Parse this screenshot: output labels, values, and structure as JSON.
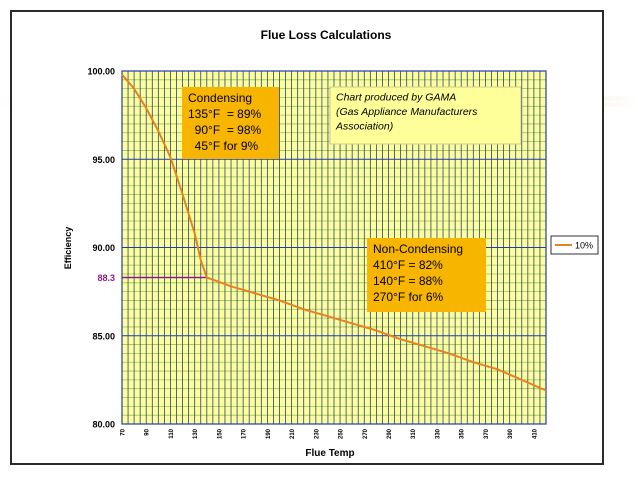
{
  "chart_data": {
    "type": "line",
    "title": "Flue Loss Calculations",
    "xlabel": "Flue Temp",
    "ylabel": "Efficiency",
    "xlim": [
      70,
      420
    ],
    "ylim": [
      80,
      100
    ],
    "x_ticks": [
      70,
      90,
      110,
      130,
      150,
      170,
      190,
      210,
      230,
      250,
      270,
      290,
      310,
      330,
      350,
      370,
      390,
      410
    ],
    "y_ticks": [
      "80.00",
      "85.00",
      "90.00",
      "95.00",
      "100.00"
    ],
    "grid": true,
    "legend_position": "right",
    "series": [
      {
        "name": "10%",
        "color": "#e8821e",
        "points": [
          [
            70,
            99.8
          ],
          [
            80,
            99.0
          ],
          [
            90,
            97.9
          ],
          [
            100,
            96.6
          ],
          [
            110,
            95.1
          ],
          [
            120,
            93.0
          ],
          [
            130,
            90.8
          ],
          [
            135,
            89.3
          ],
          [
            140,
            88.3
          ],
          [
            160,
            87.8
          ],
          [
            180,
            87.4
          ],
          [
            200,
            87.0
          ],
          [
            220,
            86.5
          ],
          [
            240,
            86.1
          ],
          [
            260,
            85.7
          ],
          [
            280,
            85.3
          ],
          [
            300,
            84.8
          ],
          [
            320,
            84.4
          ],
          [
            340,
            84.0
          ],
          [
            360,
            83.5
          ],
          [
            380,
            83.1
          ],
          [
            400,
            82.5
          ],
          [
            420,
            81.9
          ]
        ]
      }
    ],
    "reference": {
      "label": "88.3",
      "y": 88.3,
      "x_end": 140,
      "color": "#8b1a8b"
    },
    "annotations": {
      "condensing": [
        "Condensing",
        "135°F  = 89%",
        "  90°F  = 98%",
        "  45°F for 9%"
      ],
      "noncondensing": [
        "Non-Condensing",
        "410°F = 82%",
        "140°F = 88%",
        "270°F for 6%"
      ],
      "source": [
        "Chart produced by GAMA",
        "(Gas Appliance Manufacturers",
        "Association)"
      ]
    },
    "colors": {
      "plot_fill": "#ffff99",
      "grid_vertical": "#1f3ea8",
      "grid_horizontal": "#9ec24a",
      "annotation_box": "#f7b500",
      "source_box": "#ffff99"
    }
  }
}
